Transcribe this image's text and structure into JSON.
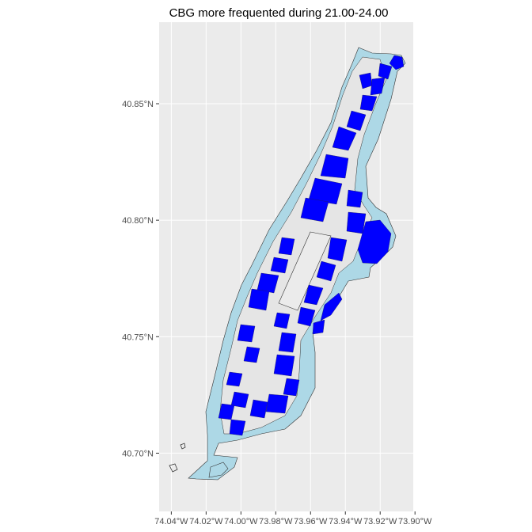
{
  "chart_data": {
    "type": "map",
    "title": "CBG more frequented during 21.00-24.00",
    "x_axis": {
      "ticks": [
        -74.04,
        -74.02,
        -74.0,
        -73.98,
        -73.96,
        -73.94,
        -73.92,
        -73.9
      ],
      "labels": [
        "74.04°W",
        "74.02°W",
        "74.00°W",
        "73.98°W",
        "73.96°W",
        "73.94°W",
        "73.92°W",
        "73.90°W"
      ],
      "range": [
        -74.047,
        -73.901
      ]
    },
    "y_axis": {
      "ticks": [
        40.7,
        40.75,
        40.8,
        40.85
      ],
      "labels": [
        "40.70°N",
        "40.75°N",
        "40.80°N",
        "40.85°N"
      ],
      "range": [
        40.675,
        40.885
      ]
    },
    "grid": true,
    "colors": {
      "panel": "#ebebeb",
      "grid": "#ffffff",
      "highlighted_cbg": "#0000ff",
      "other_cbg": "#e5e5e5",
      "water_tracts": "#add8e6",
      "boundary": "#333333"
    }
  }
}
